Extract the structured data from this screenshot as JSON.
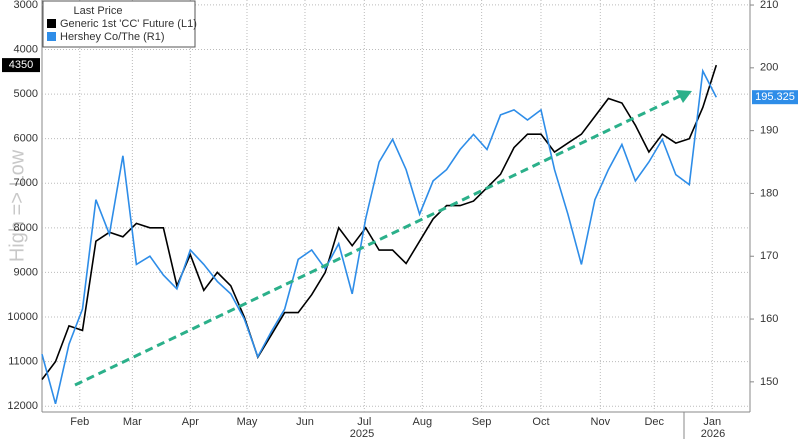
{
  "chart_data": {
    "type": "line",
    "legend_title": "Last Price",
    "legend_corner": "top-left",
    "y_label": "High => Low",
    "xlim": [
      0,
      52.5
    ],
    "xticks": [
      {
        "value": 2.8,
        "label": "Feb"
      },
      {
        "value": 6.7,
        "label": "Mar"
      },
      {
        "value": 11.0,
        "label": "Apr"
      },
      {
        "value": 15.2,
        "label": "May"
      },
      {
        "value": 19.5,
        "label": "Jun"
      },
      {
        "value": 23.9,
        "label": "Jul"
      },
      {
        "value": 28.2,
        "label": "Aug"
      },
      {
        "value": 32.6,
        "label": "Sep"
      },
      {
        "value": 37.0,
        "label": "Oct"
      },
      {
        "value": 41.4,
        "label": "Nov"
      },
      {
        "value": 45.4,
        "label": "Dec"
      },
      {
        "value": 49.7,
        "label": "Jan"
      }
    ],
    "x_year_labels": [
      "2025",
      "2026"
    ],
    "ylim": [
      12130,
      2890
    ],
    "yticks": [
      3000,
      4000,
      5000,
      6000,
      7000,
      8000,
      9000,
      10000,
      11000,
      12000
    ],
    "y2lim": [
      145.2,
      210.8
    ],
    "y2ticks": [
      150,
      160,
      170,
      180,
      190,
      200,
      210
    ],
    "grid": true,
    "series": [
      {
        "name": "Generic 1st 'CC' Future  (L1)",
        "color": "#000000",
        "axis": "y",
        "values": [
          11400,
          11000,
          10200,
          10300,
          8300,
          8100,
          8200,
          7900,
          8000,
          8000,
          9300,
          8600,
          9400,
          9000,
          9300,
          10000,
          10900,
          10400,
          9900,
          9900,
          9500,
          9000,
          8000,
          8400,
          8000,
          8500,
          8500,
          8800,
          8300,
          7800,
          7500,
          7500,
          7400,
          7100,
          6800,
          6200,
          5900,
          5900,
          6300,
          6100,
          5900,
          5500,
          5100,
          5200,
          5700,
          6300,
          5900,
          6100,
          6000,
          5300,
          4350
        ]
      },
      {
        "name": "Hershey Co/The  (R1)",
        "color": "#2e8de8",
        "axis": "y2",
        "values": [
          154.4,
          146.5,
          156,
          161.6,
          179,
          173.5,
          186,
          168.7,
          170,
          167,
          164.8,
          171,
          168.7,
          166,
          164,
          160,
          154,
          158,
          161.6,
          169.5,
          171,
          168,
          172,
          164,
          176,
          185,
          188.6,
          183.8,
          176.7,
          182,
          183.8,
          187,
          189.4,
          187,
          192.5,
          193.3,
          191.7,
          193.3,
          183.8,
          176.7,
          168.7,
          179,
          183.8,
          187.8,
          182,
          185,
          188.6,
          183,
          181.4,
          199.5,
          195.325
        ]
      }
    ]
  }
}
